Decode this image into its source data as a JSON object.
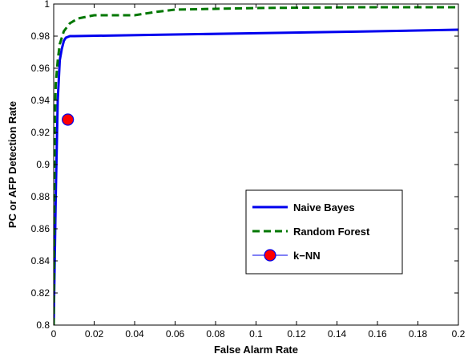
{
  "chart_data": {
    "type": "line",
    "title": "",
    "xlabel": "False Alarm Rate",
    "ylabel": "PC or AFP Detection Rate",
    "xlim": [
      0,
      0.2
    ],
    "ylim": [
      0.8,
      1.0
    ],
    "x_ticks": [
      0,
      0.02,
      0.04,
      0.06,
      0.08,
      0.1,
      0.12,
      0.14,
      0.16,
      0.18,
      0.2
    ],
    "x_tick_labels": [
      "0",
      "0.02",
      "0.04",
      "0.06",
      "0.08",
      "0.1",
      "0.12",
      "0.14",
      "0.16",
      "0.18",
      "0.2"
    ],
    "y_ticks": [
      0.8,
      0.82,
      0.84,
      0.86,
      0.88,
      0.9,
      0.92,
      0.94,
      0.96,
      0.98,
      1.0
    ],
    "y_tick_labels": [
      "0.8",
      "0.82",
      "0.84",
      "0.86",
      "0.88",
      "0.9",
      "0.92",
      "0.94",
      "0.96",
      "0.98",
      "1"
    ],
    "grid": false,
    "legend_position": "center-right",
    "series": [
      {
        "name": "Naive Bayes",
        "color": "#0000ee",
        "style": "solid",
        "marker": "none",
        "x": [
          0.0,
          0.001,
          0.002,
          0.003,
          0.004,
          0.005,
          0.006,
          0.008,
          0.01,
          0.05,
          0.1,
          0.15,
          0.2
        ],
        "y": [
          0.8,
          0.88,
          0.94,
          0.965,
          0.972,
          0.977,
          0.979,
          0.98,
          0.98,
          0.9808,
          0.9818,
          0.9828,
          0.984
        ]
      },
      {
        "name": "Random Forest",
        "color": "#007700",
        "style": "dashed",
        "marker": "none",
        "x": [
          0.0,
          0.0005,
          0.001,
          0.002,
          0.003,
          0.005,
          0.008,
          0.012,
          0.02,
          0.03,
          0.04,
          0.05,
          0.06,
          0.1,
          0.15,
          0.2
        ],
        "y": [
          0.8,
          0.92,
          0.95,
          0.965,
          0.975,
          0.983,
          0.988,
          0.991,
          0.993,
          0.993,
          0.993,
          0.995,
          0.9965,
          0.9975,
          0.998,
          0.998
        ]
      },
      {
        "name": "k−NN",
        "color": "#ff0000",
        "edge_color": "#0000ee",
        "style": "none",
        "marker": "circle",
        "x": [
          0.007
        ],
        "y": [
          0.928
        ]
      }
    ]
  }
}
